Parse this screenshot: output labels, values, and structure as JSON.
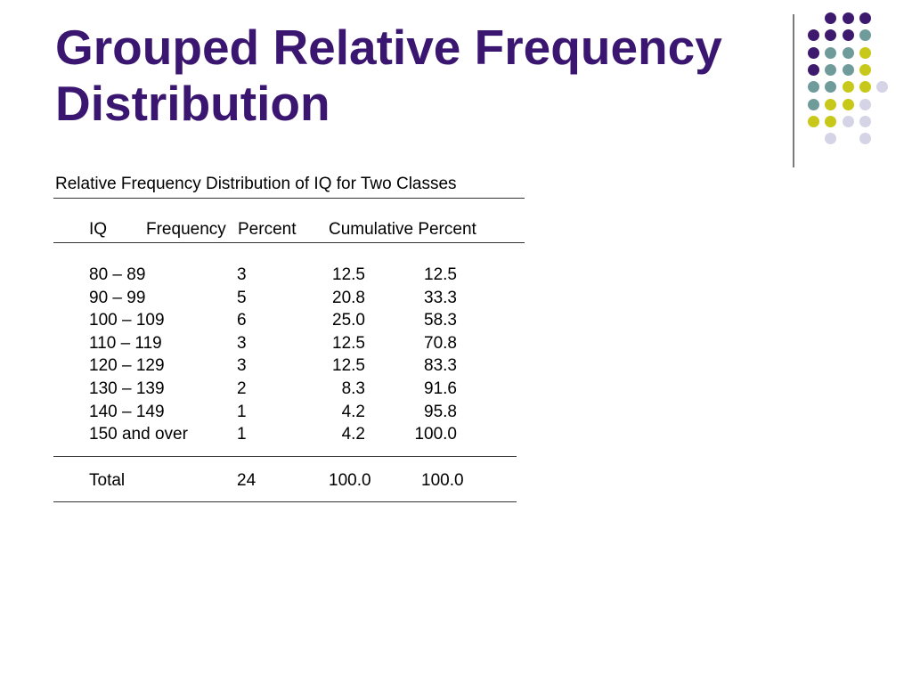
{
  "title": {
    "line1": "Grouped Relative Frequency",
    "line2": "Distribution"
  },
  "decoration": {
    "dot_colors": {
      "purple": "#3e1a6e",
      "teal": "#6f9c9b",
      "yellow": "#c8c81a",
      "lavender": "#d4d4e6"
    }
  },
  "table": {
    "caption": "Relative Frequency Distribution of IQ for Two Classes",
    "headers": {
      "iq": "IQ",
      "frequency": "Frequency",
      "percent": "Percent",
      "cumulative": "Cumulative Percent"
    },
    "rows": [
      {
        "iq": "80 – 89",
        "frequency": "3",
        "percent": "12.5",
        "cumulative": "12.5"
      },
      {
        "iq": "90 – 99",
        "frequency": "5",
        "percent": "20.8",
        "cumulative": "33.3"
      },
      {
        "iq": "100 – 109",
        "frequency": "6",
        "percent": "25.0",
        "cumulative": "58.3"
      },
      {
        "iq": "110 – 119",
        "frequency": "3",
        "percent": "12.5",
        "cumulative": "70.8"
      },
      {
        "iq": "120 – 129",
        "frequency": "3",
        "percent": "12.5",
        "cumulative": "83.3"
      },
      {
        "iq": "130 – 139",
        "frequency": "2",
        "percent": "8.3",
        "cumulative": "91.6"
      },
      {
        "iq": "140 – 149",
        "frequency": "1",
        "percent": "4.2",
        "cumulative": "95.8"
      },
      {
        "iq": "150 and over",
        "frequency": "1",
        "percent": "4.2",
        "cumulative": "100.0"
      }
    ],
    "total": {
      "iq": "Total",
      "frequency": "24",
      "percent": "100.0",
      "cumulative": "100.0"
    }
  }
}
